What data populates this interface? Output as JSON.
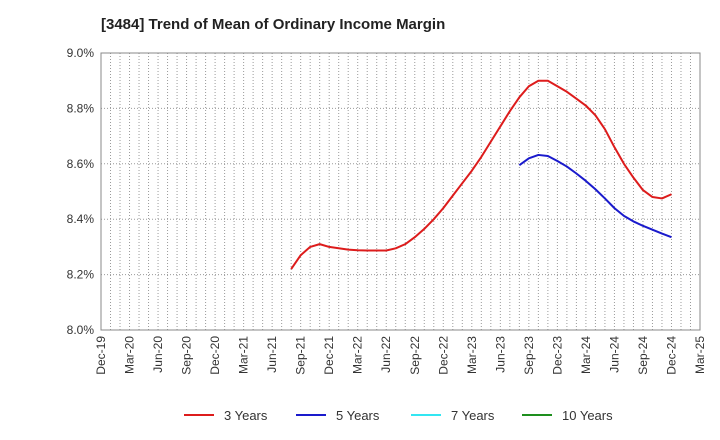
{
  "chart_data": {
    "type": "line",
    "title": "[3484]  Trend of Mean of Ordinary Income Margin",
    "xlabel": "",
    "ylabel": "",
    "x_ticks": [
      "Dec-19",
      "Mar-20",
      "Jun-20",
      "Sep-20",
      "Dec-20",
      "Mar-21",
      "Jun-21",
      "Sep-21",
      "Dec-21",
      "Mar-22",
      "Jun-22",
      "Sep-22",
      "Dec-22",
      "Mar-23",
      "Jun-23",
      "Sep-23",
      "Dec-23",
      "Mar-24",
      "Jun-24",
      "Sep-24",
      "Dec-24",
      "Mar-25"
    ],
    "y_ticks": [
      "8.0%",
      "8.2%",
      "8.4%",
      "8.6%",
      "8.8%",
      "9.0%"
    ],
    "ylim": [
      8.0,
      9.0
    ],
    "grid": true,
    "legend_position": "bottom",
    "series": [
      {
        "name": "3 Years",
        "color": "#dd1c1c",
        "points": [
          [
            "Aug-21",
            8.22
          ],
          [
            "Sep-21",
            8.27
          ],
          [
            "Oct-21",
            8.3
          ],
          [
            "Nov-21",
            8.31
          ],
          [
            "Dec-21",
            8.3
          ],
          [
            "Jan-22",
            8.295
          ],
          [
            "Feb-22",
            8.29
          ],
          [
            "Mar-22",
            8.288
          ],
          [
            "Apr-22",
            8.287
          ],
          [
            "May-22",
            8.287
          ],
          [
            "Jun-22",
            8.287
          ],
          [
            "Jul-22",
            8.295
          ],
          [
            "Aug-22",
            8.31
          ],
          [
            "Sep-22",
            8.335
          ],
          [
            "Oct-22",
            8.365
          ],
          [
            "Nov-22",
            8.4
          ],
          [
            "Dec-22",
            8.44
          ],
          [
            "Jan-23",
            8.485
          ],
          [
            "Feb-23",
            8.53
          ],
          [
            "Mar-23",
            8.575
          ],
          [
            "Apr-23",
            8.625
          ],
          [
            "May-23",
            8.68
          ],
          [
            "Jun-23",
            8.735
          ],
          [
            "Jul-23",
            8.79
          ],
          [
            "Aug-23",
            8.84
          ],
          [
            "Sep-23",
            8.88
          ],
          [
            "Oct-23",
            8.9
          ],
          [
            "Nov-23",
            8.9
          ],
          [
            "Dec-23",
            8.88
          ],
          [
            "Jan-24",
            8.86
          ],
          [
            "Feb-24",
            8.835
          ],
          [
            "Mar-24",
            8.81
          ],
          [
            "Apr-24",
            8.775
          ],
          [
            "May-24",
            8.725
          ],
          [
            "Jun-24",
            8.66
          ],
          [
            "Jul-24",
            8.6
          ],
          [
            "Aug-24",
            8.55
          ],
          [
            "Sep-24",
            8.505
          ],
          [
            "Oct-24",
            8.48
          ],
          [
            "Nov-24",
            8.475
          ],
          [
            "Dec-24",
            8.49
          ]
        ]
      },
      {
        "name": "5 Years",
        "color": "#1a1acc",
        "points": [
          [
            "Aug-23",
            8.595
          ],
          [
            "Sep-23",
            8.62
          ],
          [
            "Oct-23",
            8.632
          ],
          [
            "Nov-23",
            8.628
          ],
          [
            "Dec-23",
            8.61
          ],
          [
            "Jan-24",
            8.59
          ],
          [
            "Feb-24",
            8.565
          ],
          [
            "Mar-24",
            8.538
          ],
          [
            "Apr-24",
            8.508
          ],
          [
            "May-24",
            8.475
          ],
          [
            "Jun-24",
            8.44
          ],
          [
            "Jul-24",
            8.412
          ],
          [
            "Aug-24",
            8.392
          ],
          [
            "Sep-24",
            8.376
          ],
          [
            "Oct-24",
            8.362
          ],
          [
            "Nov-24",
            8.348
          ],
          [
            "Dec-24",
            8.335
          ]
        ]
      },
      {
        "name": "7 Years",
        "color": "#33e6f2",
        "points": []
      },
      {
        "name": "10 Years",
        "color": "#1e8f1e",
        "points": []
      }
    ]
  }
}
